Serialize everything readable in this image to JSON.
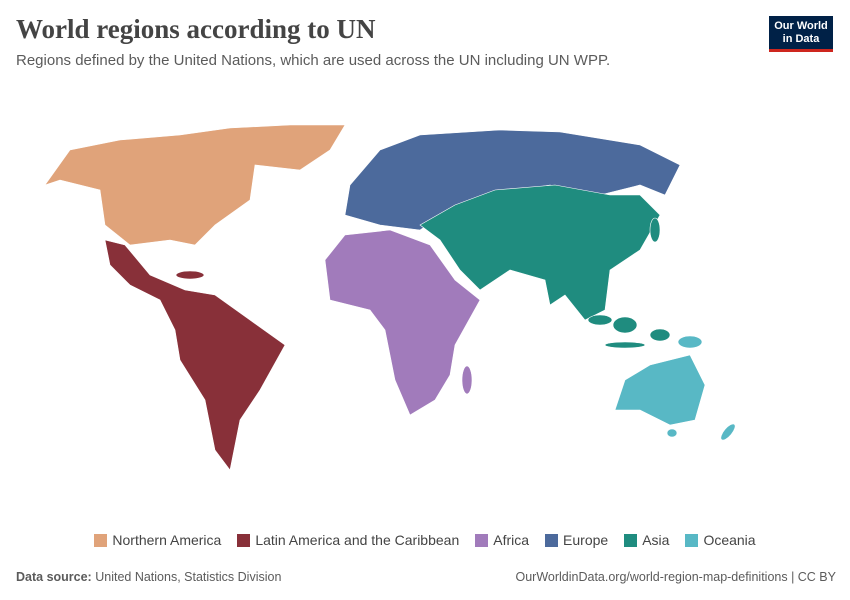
{
  "header": {
    "title": "World regions according to UN",
    "subtitle": "Regions defined by the United Nations, which are used across the UN including UN WPP."
  },
  "logo": {
    "line1": "Our World",
    "line2": "in Data"
  },
  "legend": [
    {
      "name": "Northern America",
      "color": "#e0a37a"
    },
    {
      "name": "Latin America and the Caribbean",
      "color": "#883039"
    },
    {
      "name": "Africa",
      "color": "#a17bbb"
    },
    {
      "name": "Europe",
      "color": "#4c6a9c"
    },
    {
      "name": "Asia",
      "color": "#1f8c7f"
    },
    {
      "name": "Oceania",
      "color": "#58b8c5"
    }
  ],
  "footer": {
    "source_label": "Data source:",
    "source": "United Nations, Statistics Division",
    "url": "OurWorldinData.org/world-region-map-definitions | CC BY"
  }
}
